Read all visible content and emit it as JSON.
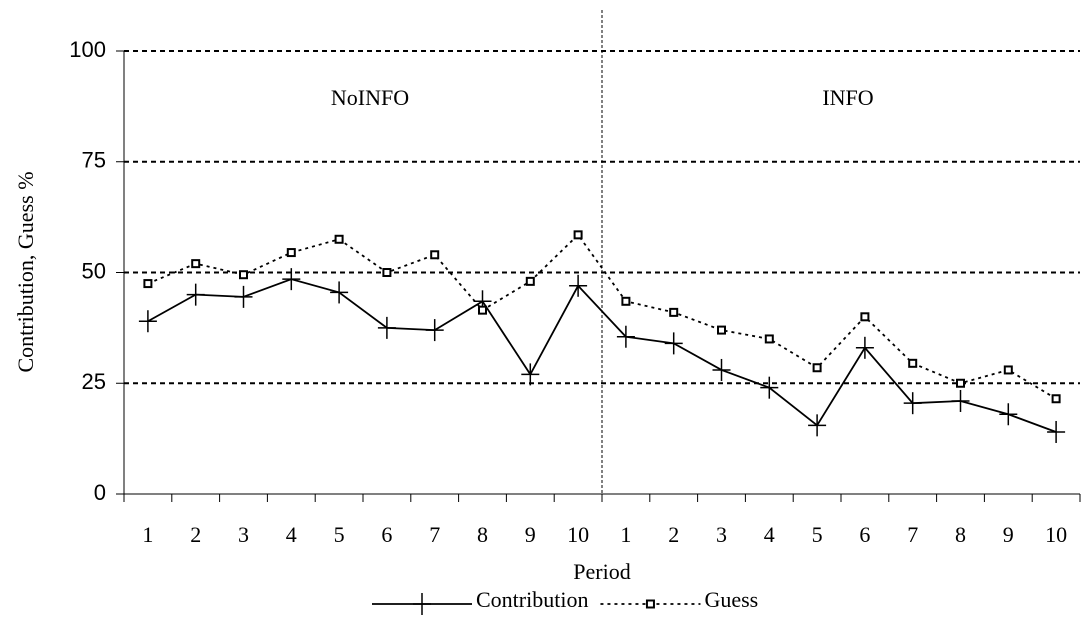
{
  "chart_data": {
    "type": "line",
    "categories": [
      "1",
      "2",
      "3",
      "4",
      "5",
      "6",
      "7",
      "8",
      "9",
      "10",
      "1",
      "2",
      "3",
      "4",
      "5",
      "6",
      "7",
      "8",
      "9",
      "10"
    ],
    "series": [
      {
        "name": "Contribution",
        "color": "#000000",
        "line_style": "solid",
        "marker": "plus",
        "values": [
          39,
          45,
          44.5,
          48.5,
          45.5,
          37.5,
          37,
          43.5,
          27,
          47,
          35.5,
          34,
          28,
          24,
          15.5,
          33,
          20.5,
          21,
          18,
          14
        ]
      },
      {
        "name": "Guess",
        "color": "#000000",
        "line_style": "dotted",
        "marker": "square",
        "values": [
          47.5,
          52,
          49.5,
          54.5,
          57.5,
          50,
          54,
          41.5,
          48,
          58.5,
          43.5,
          41,
          37,
          35,
          28.5,
          40,
          29.5,
          25,
          28,
          21.5
        ]
      }
    ],
    "ylim": [
      0,
      100
    ],
    "yticks": [
      0,
      25,
      50,
      75,
      100
    ],
    "grid": true,
    "y_label": "Contribution, Guess %",
    "x_label": "Period",
    "annotations": [
      "NoINFO",
      "INFO"
    ],
    "legend": "bottom"
  }
}
